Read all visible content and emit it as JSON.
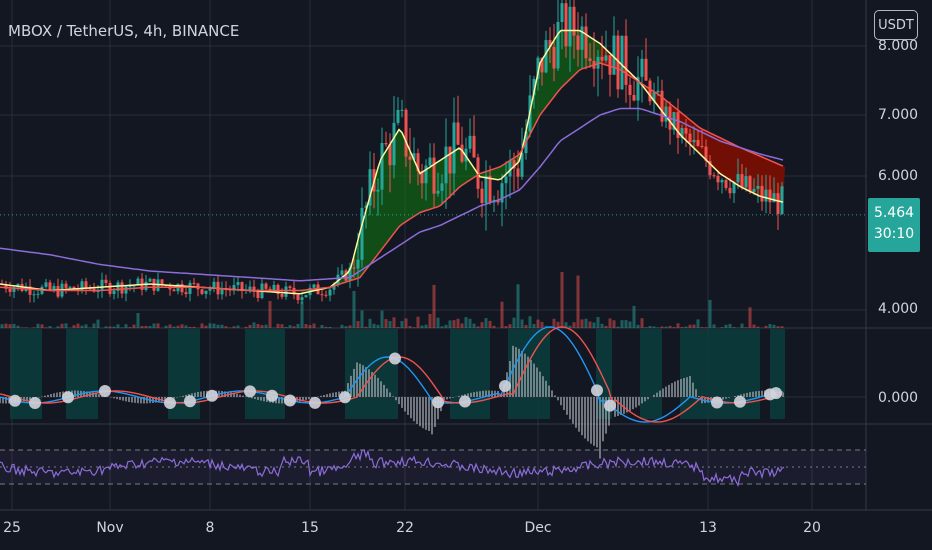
{
  "header": {
    "title": "MBOX / TetherUS, 4h, BINANCE",
    "currency_button": "USDT"
  },
  "price_tag": {
    "price": "5.464",
    "countdown": "30:10",
    "color": "#26a69a"
  },
  "colors": {
    "background": "#131722",
    "grid": "#2a2e39",
    "up_candle": "#26a69a",
    "down_candle": "#ef5350",
    "ma_fast": "#fff59d",
    "ma_mid": "#ef5350",
    "ma_slow": "#8c6cd8",
    "rsi": "#8c6cd8",
    "ribbon_bull": "#0f7a0f",
    "ribbon_bear": "#8b0000"
  },
  "chart_data": [
    {
      "type": "candlestick",
      "title": "MBOX / TetherUS, 4h, BINANCE",
      "x_ticks": [
        "25",
        "Nov",
        "8",
        "15",
        "22",
        "Dec",
        "13",
        "20"
      ],
      "y_ticks": [
        "8.000",
        "7.000",
        "6.000",
        "4.000"
      ],
      "ylim": [
        3.7,
        8.3
      ],
      "last_price": 5.464,
      "grid": true,
      "series": [
        {
          "kind": "ma",
          "color": "#fff59d",
          "x": [
            0,
            50,
            100,
            150,
            200,
            250,
            300,
            330,
            350,
            360,
            380,
            400,
            420,
            440,
            460,
            480,
            500,
            520,
            540,
            560,
            580,
            600,
            620,
            640,
            660,
            680,
            700,
            720,
            740,
            760,
            785
          ],
          "y": [
            4.4,
            4.3,
            4.35,
            4.4,
            4.35,
            4.3,
            4.25,
            4.35,
            4.6,
            5.2,
            6.3,
            6.8,
            6.1,
            6.3,
            6.5,
            6.05,
            6.0,
            6.3,
            7.8,
            8.3,
            8.3,
            8.1,
            7.8,
            7.5,
            7.1,
            6.7,
            6.4,
            6.1,
            5.9,
            5.75,
            5.65
          ]
        },
        {
          "kind": "ma",
          "color": "#ef5350",
          "x": [
            0,
            50,
            100,
            150,
            200,
            250,
            300,
            330,
            360,
            380,
            400,
            420,
            440,
            460,
            480,
            500,
            520,
            540,
            560,
            580,
            600,
            620,
            660,
            700,
            740,
            785
          ],
          "y": [
            4.35,
            4.3,
            4.3,
            4.35,
            4.35,
            4.3,
            4.3,
            4.35,
            4.5,
            4.9,
            5.3,
            5.5,
            5.6,
            5.9,
            6.1,
            6.2,
            6.4,
            7.0,
            7.4,
            7.7,
            7.8,
            7.7,
            7.3,
            6.8,
            6.5,
            6.2
          ]
        },
        {
          "kind": "ma",
          "color": "#8c6cd8",
          "x": [
            0,
            50,
            100,
            150,
            200,
            250,
            300,
            350,
            380,
            400,
            420,
            440,
            460,
            480,
            500,
            520,
            540,
            560,
            580,
            600,
            620,
            640,
            680,
            720,
            760,
            785
          ],
          "y": [
            4.95,
            4.85,
            4.7,
            4.6,
            4.55,
            4.5,
            4.45,
            4.5,
            4.8,
            5.0,
            5.2,
            5.3,
            5.45,
            5.6,
            5.7,
            5.85,
            6.2,
            6.6,
            6.8,
            7.0,
            7.1,
            7.1,
            6.9,
            6.6,
            6.4,
            6.3
          ]
        }
      ]
    },
    {
      "type": "line",
      "title": "",
      "y_ticks": [
        "0.000"
      ],
      "ylim": [
        -1,
        1
      ],
      "grid": true,
      "series": [
        {
          "kind": "macd",
          "color": "#2196f3"
        },
        {
          "kind": "signal",
          "color": "#ef5350"
        }
      ]
    },
    {
      "type": "line",
      "title": "",
      "ylim": [
        0,
        100
      ],
      "bands": [
        70,
        50,
        30
      ],
      "series": [
        {
          "kind": "rsi",
          "color": "#8c6cd8"
        }
      ]
    }
  ]
}
